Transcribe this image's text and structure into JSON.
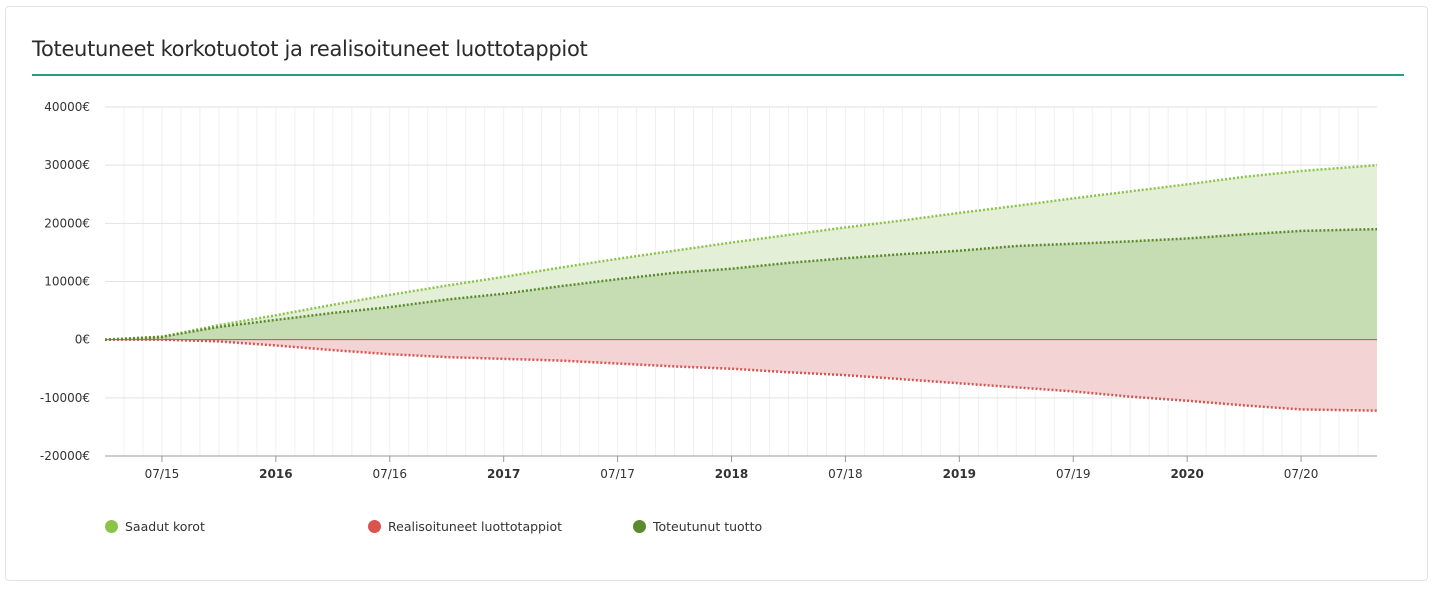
{
  "header": {
    "title": "Toteutuneet korkotuotot ja realisoituneet luottotappiot"
  },
  "chart_data": {
    "type": "area",
    "title": "Toteutuneet korkotuotot ja realisoituneet luottotappiot",
    "ylim": [
      -20000,
      40000
    ],
    "yticks": [
      40000,
      30000,
      20000,
      10000,
      0,
      -10000,
      -20000
    ],
    "ytick_labels": [
      "40000€",
      "30000€",
      "20000€",
      "10000€",
      "0€",
      "-10000€",
      "-20000€"
    ],
    "xlim": [
      "2015-04",
      "2020-11"
    ],
    "xticks": [
      {
        "date": "2015-07",
        "label": "07/15",
        "bold": false
      },
      {
        "date": "2016-01",
        "label": "2016",
        "bold": true
      },
      {
        "date": "2016-07",
        "label": "07/16",
        "bold": false
      },
      {
        "date": "2017-01",
        "label": "2017",
        "bold": true
      },
      {
        "date": "2017-07",
        "label": "07/17",
        "bold": false
      },
      {
        "date": "2018-01",
        "label": "2018",
        "bold": true
      },
      {
        "date": "2018-07",
        "label": "07/18",
        "bold": false
      },
      {
        "date": "2019-01",
        "label": "2019",
        "bold": true
      },
      {
        "date": "2019-07",
        "label": "07/19",
        "bold": false
      },
      {
        "date": "2020-01",
        "label": "2020",
        "bold": true
      },
      {
        "date": "2020-07",
        "label": "07/20",
        "bold": false
      }
    ],
    "grid": true,
    "legend_position": "bottom-left",
    "x": [
      "2015-04",
      "2015-07",
      "2015-10",
      "2016-01",
      "2016-04",
      "2016-07",
      "2016-10",
      "2017-01",
      "2017-04",
      "2017-07",
      "2017-10",
      "2018-01",
      "2018-04",
      "2018-07",
      "2018-10",
      "2019-01",
      "2019-04",
      "2019-07",
      "2019-10",
      "2020-01",
      "2020-04",
      "2020-07",
      "2020-11"
    ],
    "series": [
      {
        "name": "Saadut korot",
        "color": "#8bc34a",
        "values": [
          0,
          500,
          2500,
          4200,
          6000,
          7700,
          9300,
          10800,
          12400,
          13900,
          15300,
          16700,
          18000,
          19300,
          20500,
          21800,
          23000,
          24300,
          25500,
          26700,
          28000,
          29000,
          30000
        ]
      },
      {
        "name": "Realisoituneet luottotappiot",
        "color": "#d9534f",
        "values": [
          0,
          0,
          -300,
          -1000,
          -1800,
          -2500,
          -3000,
          -3300,
          -3600,
          -4100,
          -4600,
          -5000,
          -5600,
          -6100,
          -6800,
          -7500,
          -8200,
          -8900,
          -9800,
          -10500,
          -11300,
          -12000,
          -12200
        ]
      },
      {
        "name": "Toteutunut tuotto",
        "color": "#5b8a2e",
        "values": [
          0,
          500,
          2200,
          3400,
          4600,
          5600,
          6900,
          7900,
          9200,
          10400,
          11500,
          12200,
          13200,
          14000,
          14700,
          15300,
          16100,
          16500,
          16900,
          17400,
          18100,
          18700,
          19000
        ]
      }
    ]
  }
}
